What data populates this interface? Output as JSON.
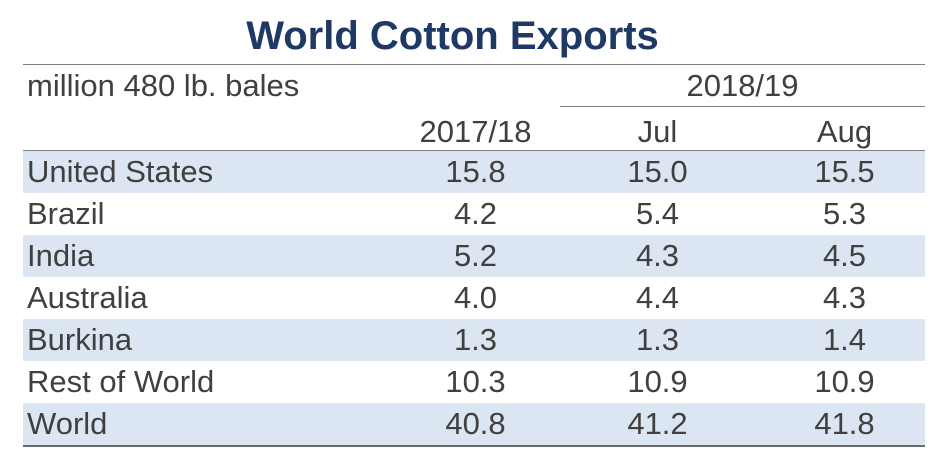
{
  "title": "World Cotton Exports",
  "units": "million 480 lb. bales",
  "group_header": "2018/19",
  "columns": [
    "2017/18",
    "Jul",
    "Aug"
  ],
  "rows": [
    {
      "name": "United States",
      "v1": "15.8",
      "v2": "15.0",
      "v3": "15.5"
    },
    {
      "name": "Brazil",
      "v1": "4.2",
      "v2": "5.4",
      "v3": "5.3"
    },
    {
      "name": "India",
      "v1": "5.2",
      "v2": "4.3",
      "v3": "4.5"
    },
    {
      "name": "Australia",
      "v1": "4.0",
      "v2": "4.4",
      "v3": "4.3"
    },
    {
      "name": "Burkina",
      "v1": "1.3",
      "v2": "1.3",
      "v3": "1.4"
    },
    {
      "name": "Rest of World",
      "v1": "10.3",
      "v2": "10.9",
      "v3": "10.9"
    },
    {
      "name": "World",
      "v1": "40.8",
      "v2": "41.2",
      "v3": "41.8"
    }
  ],
  "chart_data": {
    "type": "table",
    "title": "World Cotton Exports",
    "units": "million 480 lb. bales",
    "columns": [
      "2017/18",
      "2018/19 Jul",
      "2018/19 Aug"
    ],
    "categories": [
      "United States",
      "Brazil",
      "India",
      "Australia",
      "Burkina",
      "Rest of World",
      "World"
    ],
    "series": [
      {
        "name": "2017/18",
        "values": [
          15.8,
          4.2,
          5.2,
          4.0,
          1.3,
          10.3,
          40.8
        ]
      },
      {
        "name": "2018/19 Jul",
        "values": [
          15.0,
          5.4,
          4.3,
          4.4,
          1.3,
          10.9,
          41.2
        ]
      },
      {
        "name": "2018/19 Aug",
        "values": [
          15.5,
          5.3,
          4.5,
          4.3,
          1.4,
          10.9,
          41.8
        ]
      }
    ]
  },
  "colors": {
    "title": "#1f3864",
    "shade": "#dce6f2",
    "text": "#404040"
  }
}
